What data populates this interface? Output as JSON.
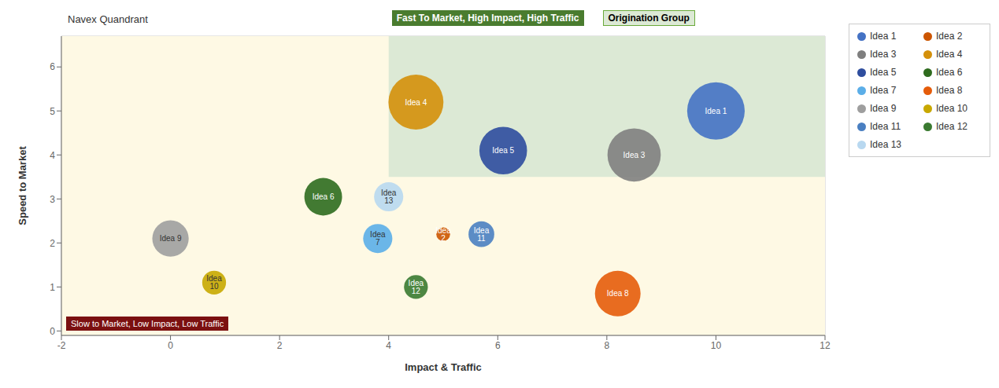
{
  "chart_data": {
    "type": "bubble",
    "title": "Navex Quandrant",
    "xlabel": "Impact & Traffic",
    "ylabel": "Speed to Market",
    "xlim": [
      -2,
      12
    ],
    "ylim": [
      -0.1,
      6.7
    ],
    "xticks": [
      -2,
      0,
      2,
      4,
      6,
      8,
      10,
      12
    ],
    "yticks": [
      0,
      1,
      2,
      3,
      4,
      5,
      6
    ],
    "grid": true,
    "legend": "right",
    "series": [
      {
        "name": "Idea 1",
        "color": "#4472c4",
        "x": [
          10.0
        ],
        "y": [
          5.0
        ],
        "size": [
          3500
        ]
      },
      {
        "name": "Idea 2",
        "color": "#cc5500",
        "x": [
          5.0
        ],
        "y": [
          2.2
        ],
        "size": [
          200
        ]
      },
      {
        "name": "Idea 3",
        "color": "#7f7f7f",
        "x": [
          8.5
        ],
        "y": [
          4.0
        ],
        "size": [
          3000
        ]
      },
      {
        "name": "Idea 4",
        "color": "#d4900a",
        "x": [
          4.5
        ],
        "y": [
          5.2
        ],
        "size": [
          3200
        ]
      },
      {
        "name": "Idea 5",
        "color": "#2e4d9e",
        "x": [
          6.1
        ],
        "y": [
          4.1
        ],
        "size": [
          2400
        ]
      },
      {
        "name": "Idea 6",
        "color": "#2e6b1e",
        "x": [
          2.8
        ],
        "y": [
          3.05
        ],
        "size": [
          1500
        ]
      },
      {
        "name": "Idea 7",
        "color": "#5baee8",
        "x": [
          3.8
        ],
        "y": [
          2.1
        ],
        "size": [
          900
        ]
      },
      {
        "name": "Idea 8",
        "color": "#e55c0a",
        "x": [
          8.2
        ],
        "y": [
          0.85
        ],
        "size": [
          2200
        ]
      },
      {
        "name": "Idea 9",
        "color": "#9e9e9e",
        "x": [
          0.0
        ],
        "y": [
          2.1
        ],
        "size": [
          1400
        ]
      },
      {
        "name": "Idea 10",
        "color": "#c8a800",
        "x": [
          0.8
        ],
        "y": [
          1.1
        ],
        "size": [
          600
        ]
      },
      {
        "name": "Idea 11",
        "color": "#4a7fc1",
        "x": [
          5.7
        ],
        "y": [
          2.2
        ],
        "size": [
          700
        ]
      },
      {
        "name": "Idea 12",
        "color": "#3a7a30",
        "x": [
          4.5
        ],
        "y": [
          1.0
        ],
        "size": [
          600
        ]
      },
      {
        "name": "Idea 13",
        "color": "#b8d8f0",
        "x": [
          4.0
        ],
        "y": [
          3.05
        ],
        "size": [
          900
        ]
      }
    ],
    "regions": [
      {
        "x": [
          -2,
          12
        ],
        "y": [
          -0.1,
          6.7
        ],
        "color": "#fef9e4"
      },
      {
        "x": [
          4.0,
          12
        ],
        "y": [
          3.5,
          6.7
        ],
        "color": "#dce9d5"
      }
    ],
    "annotations": [
      {
        "text": "Fast To Market, High Impact, High Traffic",
        "color": "#4a7c2f"
      },
      {
        "text": "Origination Group",
        "color": "#6aaa3a",
        "background": "#dce9d5"
      },
      {
        "text": "Slow to Market, Low Impact, Low Traffic",
        "color": "#7b1010"
      }
    ]
  }
}
